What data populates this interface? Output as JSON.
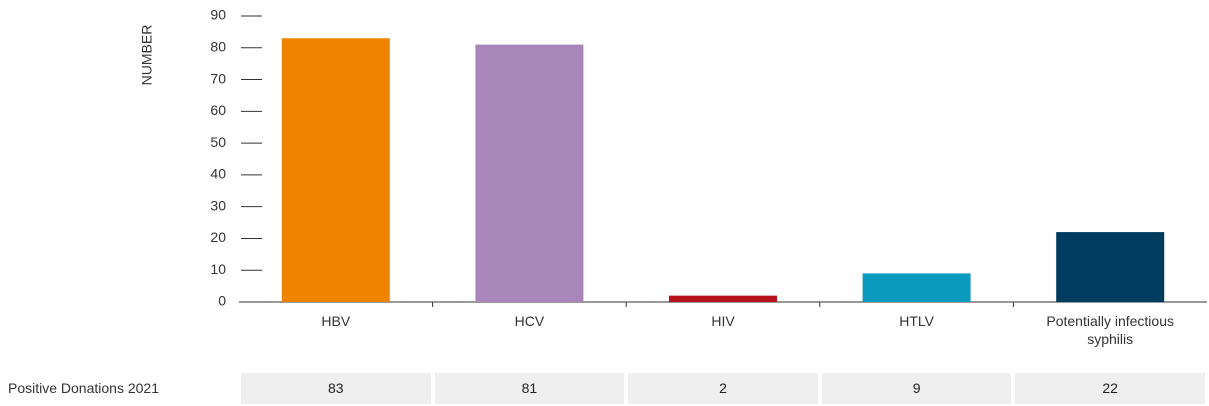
{
  "chart_data": {
    "type": "bar",
    "y_label": "NUMBER",
    "categories": [
      "HBV",
      "HCV",
      "HIV",
      "HTLV",
      "Potentially infectious syphilis"
    ],
    "values": [
      83,
      81,
      2,
      9,
      22
    ],
    "colors": [
      "#f08400",
      "#a986b9",
      "#b5121b",
      "#0a9abd",
      "#003c5f"
    ],
    "ylim": [
      0,
      90
    ],
    "yticks": [
      0,
      10,
      20,
      30,
      40,
      50,
      60,
      70,
      80,
      90
    ],
    "table_row_label": "Positive Donations 2021"
  }
}
